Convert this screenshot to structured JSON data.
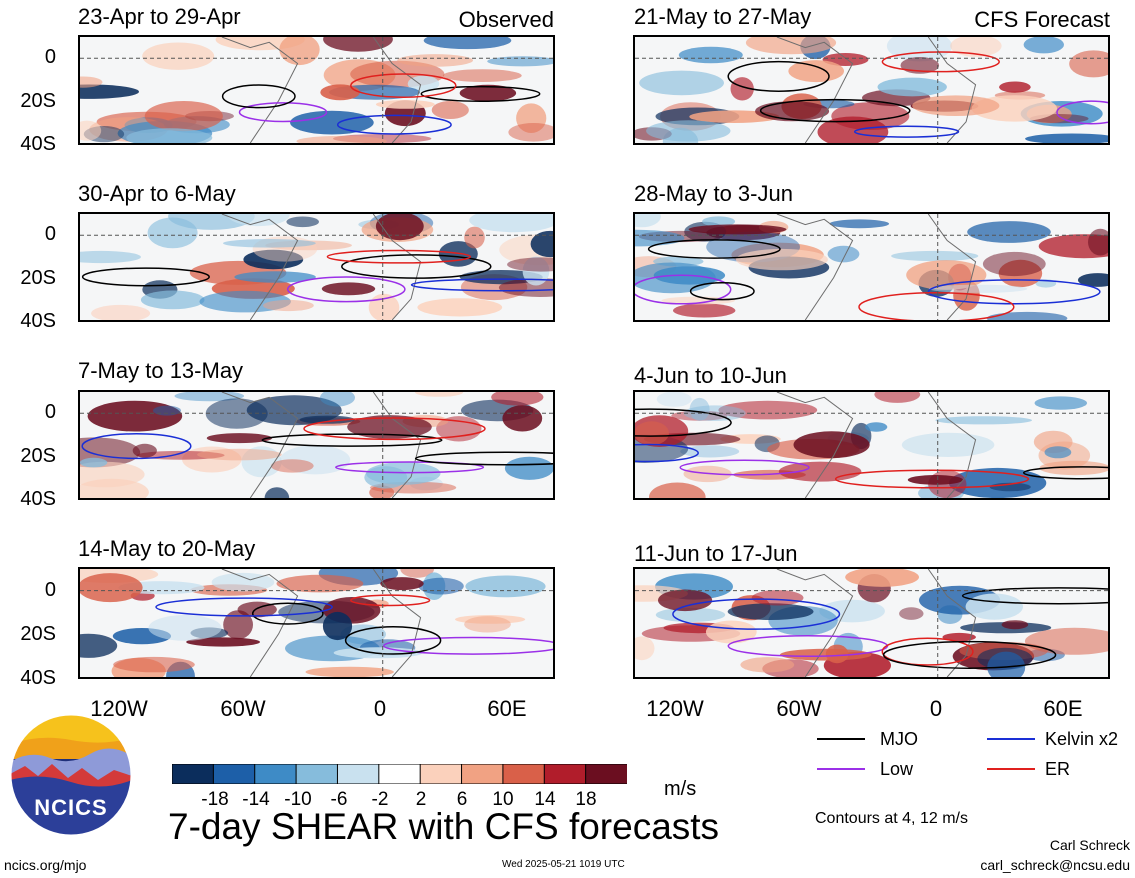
{
  "header": {
    "observed_label": "Observed",
    "forecast_label": "CFS Forecast"
  },
  "panels": [
    {
      "title": "23-Apr to 29-Apr"
    },
    {
      "title": "30-Apr to 6-May"
    },
    {
      "title": "7-May to 13-May"
    },
    {
      "title": "14-May to 20-May"
    },
    {
      "title": "21-May to 27-May"
    },
    {
      "title": "28-May to 3-Jun"
    },
    {
      "title": "4-Jun to 10-Jun"
    },
    {
      "title": "11-Jun to 17-Jun"
    }
  ],
  "chart_data": {
    "type": "heatmap",
    "title": "7-day SHEAR with CFS forecasts",
    "y_ticks": [
      "0",
      "20S",
      "40S"
    ],
    "x_ticks": [
      "120W",
      "60W",
      "0",
      "60E"
    ],
    "colorbar": {
      "unit": "m/s",
      "tick_labels": [
        "-18",
        "-14",
        "-10",
        "-6",
        "-2",
        "2",
        "6",
        "10",
        "14",
        "18"
      ],
      "colors": [
        "#0b2d5c",
        "#1d5fa8",
        "#3e8bc6",
        "#86bcdc",
        "#c9e1ef",
        "#ffffff",
        "#fbd1bc",
        "#f1a283",
        "#d96049",
        "#b11d2b",
        "#6b0e20"
      ]
    },
    "legend": [
      {
        "label": "MJO",
        "color": "#000000"
      },
      {
        "label": "Kelvin x2",
        "color": "#1a2fd6"
      },
      {
        "label": "Low",
        "color": "#9b30e8"
      },
      {
        "label": "ER",
        "color": "#e0201e"
      }
    ],
    "contour_note": "Contours at 4, 12 m/s"
  },
  "footer": {
    "logo_text": "NCICS",
    "url": "ncics.org/mjo",
    "timestamp": "Wed 2025-05-21 1019 UTC",
    "author": "Carl Schreck",
    "email": "carl_schreck@ncsu.edu"
  }
}
